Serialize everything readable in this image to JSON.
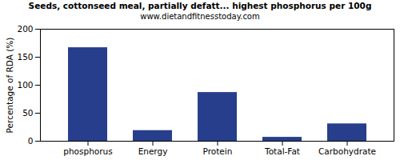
{
  "chart_data": {
    "type": "bar",
    "title": "Seeds, cottonseed meal, partially defatt... highest phosphorus per 100g",
    "subtitle": "www.dietandfitnesstoday.com",
    "y_label": "Percentage of RDA (%)",
    "categories": [
      "phosphorus",
      "Energy",
      "Protein",
      "Total-Fat",
      "Carbohydrate"
    ],
    "values": [
      167,
      19,
      87,
      7,
      31
    ],
    "color": "#263e8c",
    "ylim": [
      0,
      200
    ],
    "yticks": [
      0,
      50,
      100,
      150,
      200
    ],
    "grid": false
  }
}
